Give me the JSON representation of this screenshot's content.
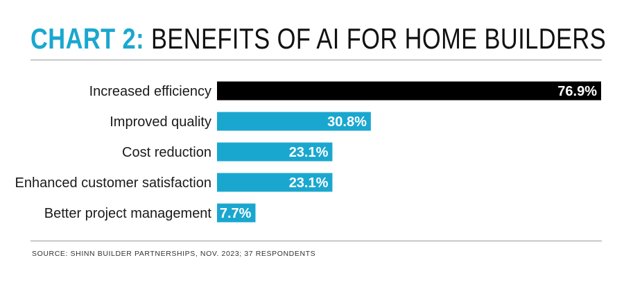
{
  "header": {
    "title_prefix": "CHART 2:",
    "title_main": "BENEFITS OF AI FOR HOME BUILDERS"
  },
  "source": "SOURCE: SHINN  BUILDER PARTNERSHIPS, NOV. 2023; 37 RESPONDENTS",
  "colors": {
    "highlight": "#000000",
    "bar": "#1aa7cf",
    "title_accent": "#1aa7cf"
  },
  "chart_data": {
    "type": "bar",
    "orientation": "horizontal",
    "title": "CHART 2: BENEFITS OF AI FOR HOME BUILDERS",
    "categories": [
      "Increased efficiency",
      "Improved quality",
      "Cost reduction",
      "Enhanced customer satisfaction",
      "Better project management"
    ],
    "values": [
      76.9,
      30.8,
      23.1,
      23.1,
      7.7
    ],
    "value_labels": [
      "76.9%",
      "30.8%",
      "23.1%",
      "23.1%",
      "7.7%"
    ],
    "highlighted_index": 0,
    "xlim": [
      0,
      76.9
    ],
    "grid": false,
    "legend": "none"
  }
}
